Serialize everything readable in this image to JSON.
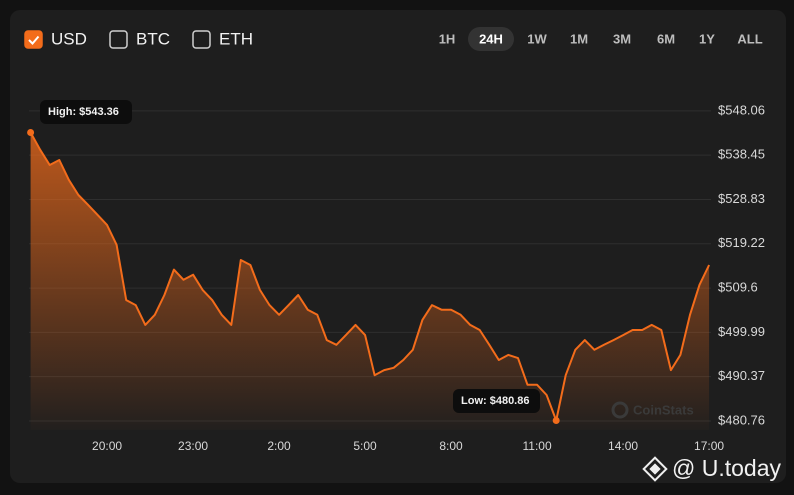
{
  "currencies": [
    {
      "label": "USD",
      "checked": true
    },
    {
      "label": "BTC",
      "checked": false
    },
    {
      "label": "ETH",
      "checked": false
    }
  ],
  "ranges": [
    {
      "label": "1H",
      "active": false
    },
    {
      "label": "24H",
      "active": true
    },
    {
      "label": "1W",
      "active": false
    },
    {
      "label": "1M",
      "active": false
    },
    {
      "label": "3M",
      "active": false
    },
    {
      "label": "6M",
      "active": false
    },
    {
      "label": "1Y",
      "active": false
    },
    {
      "label": "ALL",
      "active": false
    }
  ],
  "watermark": "CoinStats",
  "source": "@ U.today",
  "chart_data": {
    "type": "area",
    "color": "#f36c1b",
    "categories": [
      null,
      null,
      null,
      null,
      null,
      null,
      null,
      null,
      "20:00",
      null,
      null,
      null,
      null,
      null,
      null,
      null,
      null,
      "23:00",
      null,
      null,
      null,
      null,
      null,
      null,
      null,
      null,
      "2:00",
      null,
      null,
      null,
      null,
      null,
      null,
      null,
      null,
      "5:00",
      null,
      null,
      null,
      null,
      null,
      null,
      null,
      null,
      "8:00",
      null,
      null,
      null,
      null,
      null,
      null,
      null,
      null,
      "11:00",
      null,
      null,
      null,
      null,
      null,
      null,
      null,
      null,
      "14:00",
      null,
      null,
      null,
      null,
      null,
      null,
      null,
      null,
      "17:00"
    ],
    "values": [
      543.36,
      539.6,
      536.3,
      537.4,
      533.1,
      529.8,
      527.7,
      525.5,
      523.3,
      519.0,
      507.0,
      505.9,
      501.6,
      503.8,
      508.1,
      513.6,
      511.4,
      512.5,
      509.2,
      507.0,
      503.8,
      501.6,
      515.7,
      514.6,
      509.2,
      505.9,
      503.8,
      505.9,
      508.1,
      504.9,
      503.8,
      498.3,
      497.3,
      499.4,
      501.6,
      499.4,
      490.7,
      491.8,
      492.3,
      494.0,
      496.2,
      502.7,
      505.9,
      504.9,
      504.9,
      503.8,
      501.6,
      500.5,
      497.3,
      494.0,
      495.1,
      494.4,
      488.6,
      488.6,
      486.4,
      480.86,
      490.7,
      496.2,
      498.3,
      496.2,
      497.3,
      498.3,
      499.4,
      500.5,
      500.5,
      501.6,
      500.5,
      491.8,
      495.1,
      503.8,
      510.3,
      514.6
    ],
    "ylim": [
      478.8,
      551.5
    ],
    "yticks": [
      {
        "value": 548.06,
        "label": "$548.06"
      },
      {
        "value": 538.45,
        "label": "$538.45"
      },
      {
        "value": 528.83,
        "label": "$528.83"
      },
      {
        "value": 519.22,
        "label": "$519.22"
      },
      {
        "value": 509.6,
        "label": "$509.6"
      },
      {
        "value": 499.99,
        "label": "$499.99"
      },
      {
        "value": 490.37,
        "label": "$490.37"
      },
      {
        "value": 480.76,
        "label": "$480.76"
      }
    ],
    "grid": true,
    "high_label": "High: $543.36",
    "low_label": "Low: $480.86"
  }
}
